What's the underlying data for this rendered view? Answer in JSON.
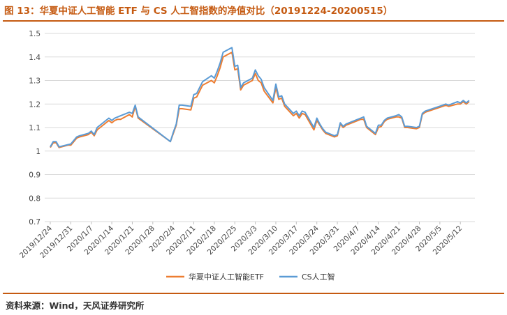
{
  "header": {
    "title": "图 13：华夏中证人工智能 ETF 与 CS 人工智指数的净值对比（20191224-20200515）"
  },
  "footer": {
    "source": "资料来源：Wind，天风证券研究所"
  },
  "colors": {
    "accent": "#c55a11",
    "etf": "#ed7d31",
    "index": "#5b9bd5",
    "grid": "#d9d9d9"
  },
  "chart_data": {
    "type": "line",
    "title": "",
    "xlabel": "",
    "ylabel": "",
    "ylim": [
      0.7,
      1.5
    ],
    "yticks": [
      "1.5",
      "1.4",
      "1.3",
      "1.2",
      "1.1",
      "1",
      "0.9",
      "0.8",
      "0.7"
    ],
    "grid": true,
    "legend": "bottom",
    "x_tick_labels": [
      "2019/12/24",
      "2019/12/31",
      "2020/1/7",
      "2020/1/14",
      "2020/1/21",
      "2020/1/28",
      "2020/2/4",
      "2020/2/11",
      "2020/2/18",
      "2020/2/25",
      "2020/3/3",
      "2020/3/10",
      "2020/3/17",
      "2020/3/24",
      "2020/3/31",
      "2020/4/7",
      "2020/4/14",
      "2020/4/21",
      "2020/4/28",
      "2020/5/5",
      "2020/5/12"
    ],
    "x": [
      "2019/12/24",
      "2019/12/25",
      "2019/12/26",
      "2019/12/27",
      "2019/12/30",
      "2019/12/31",
      "2020/1/2",
      "2020/1/3",
      "2020/1/6",
      "2020/1/7",
      "2020/1/8",
      "2020/1/9",
      "2020/1/10",
      "2020/1/13",
      "2020/1/14",
      "2020/1/15",
      "2020/1/16",
      "2020/1/17",
      "2020/1/20",
      "2020/1/21",
      "2020/1/22",
      "2020/1/23",
      "2020/2/3",
      "2020/2/4",
      "2020/2/5",
      "2020/2/6",
      "2020/2/7",
      "2020/2/10",
      "2020/2/11",
      "2020/2/12",
      "2020/2/13",
      "2020/2/14",
      "2020/2/17",
      "2020/2/18",
      "2020/2/19",
      "2020/2/20",
      "2020/2/21",
      "2020/2/24",
      "2020/2/25",
      "2020/2/26",
      "2020/2/27",
      "2020/2/28",
      "2020/3/2",
      "2020/3/3",
      "2020/3/4",
      "2020/3/5",
      "2020/3/6",
      "2020/3/9",
      "2020/3/10",
      "2020/3/11",
      "2020/3/12",
      "2020/3/13",
      "2020/3/16",
      "2020/3/17",
      "2020/3/18",
      "2020/3/19",
      "2020/3/20",
      "2020/3/23",
      "2020/3/24",
      "2020/3/25",
      "2020/3/26",
      "2020/3/27",
      "2020/3/30",
      "2020/3/31",
      "2020/4/1",
      "2020/4/2",
      "2020/4/3",
      "2020/4/7",
      "2020/4/8",
      "2020/4/9",
      "2020/4/10",
      "2020/4/13",
      "2020/4/14",
      "2020/4/15",
      "2020/4/16",
      "2020/4/17",
      "2020/4/20",
      "2020/4/21",
      "2020/4/22",
      "2020/4/23",
      "2020/4/24",
      "2020/4/27",
      "2020/4/28",
      "2020/4/29",
      "2020/4/30",
      "2020/5/6",
      "2020/5/7",
      "2020/5/8",
      "2020/5/11",
      "2020/5/12",
      "2020/5/13",
      "2020/5/14",
      "2020/5/15"
    ],
    "series": [
      {
        "name": "华夏中证人工智能ETF",
        "color": "#ed7d31",
        "values": [
          1.015,
          1.035,
          1.035,
          1.015,
          1.025,
          1.025,
          1.055,
          1.06,
          1.07,
          1.08,
          1.065,
          1.09,
          1.1,
          1.13,
          1.12,
          1.13,
          1.135,
          1.135,
          1.155,
          1.145,
          1.19,
          1.14,
          1.04,
          1.075,
          1.11,
          1.18,
          1.18,
          1.175,
          1.225,
          1.23,
          1.255,
          1.28,
          1.3,
          1.29,
          1.32,
          1.355,
          1.4,
          1.42,
          1.345,
          1.35,
          1.26,
          1.28,
          1.3,
          1.33,
          1.3,
          1.29,
          1.255,
          1.205,
          1.27,
          1.22,
          1.225,
          1.19,
          1.15,
          1.16,
          1.14,
          1.16,
          1.155,
          1.09,
          1.13,
          1.11,
          1.09,
          1.075,
          1.06,
          1.065,
          1.115,
          1.1,
          1.11,
          1.13,
          1.135,
          1.135,
          1.1,
          1.07,
          1.1,
          1.105,
          1.125,
          1.135,
          1.145,
          1.145,
          1.14,
          1.1,
          1.1,
          1.095,
          1.1,
          1.155,
          1.165,
          1.19,
          1.195,
          1.19,
          1.2,
          1.2,
          1.21,
          1.2,
          1.21
        ]
      },
      {
        "name": "CS人工智",
        "color": "#5b9bd5",
        "values": [
          1.018,
          1.04,
          1.04,
          1.018,
          1.027,
          1.03,
          1.06,
          1.065,
          1.075,
          1.085,
          1.07,
          1.1,
          1.11,
          1.14,
          1.13,
          1.14,
          1.145,
          1.15,
          1.165,
          1.16,
          1.195,
          1.145,
          1.04,
          1.08,
          1.115,
          1.195,
          1.195,
          1.19,
          1.24,
          1.245,
          1.27,
          1.295,
          1.32,
          1.31,
          1.34,
          1.375,
          1.42,
          1.44,
          1.36,
          1.365,
          1.27,
          1.29,
          1.31,
          1.345,
          1.32,
          1.305,
          1.27,
          1.215,
          1.285,
          1.23,
          1.235,
          1.2,
          1.16,
          1.17,
          1.15,
          1.17,
          1.165,
          1.1,
          1.14,
          1.115,
          1.095,
          1.08,
          1.065,
          1.07,
          1.12,
          1.105,
          1.115,
          1.135,
          1.14,
          1.145,
          1.105,
          1.075,
          1.11,
          1.11,
          1.13,
          1.14,
          1.15,
          1.155,
          1.145,
          1.105,
          1.105,
          1.1,
          1.105,
          1.16,
          1.17,
          1.195,
          1.2,
          1.195,
          1.21,
          1.205,
          1.215,
          1.205,
          1.215
        ]
      }
    ]
  }
}
